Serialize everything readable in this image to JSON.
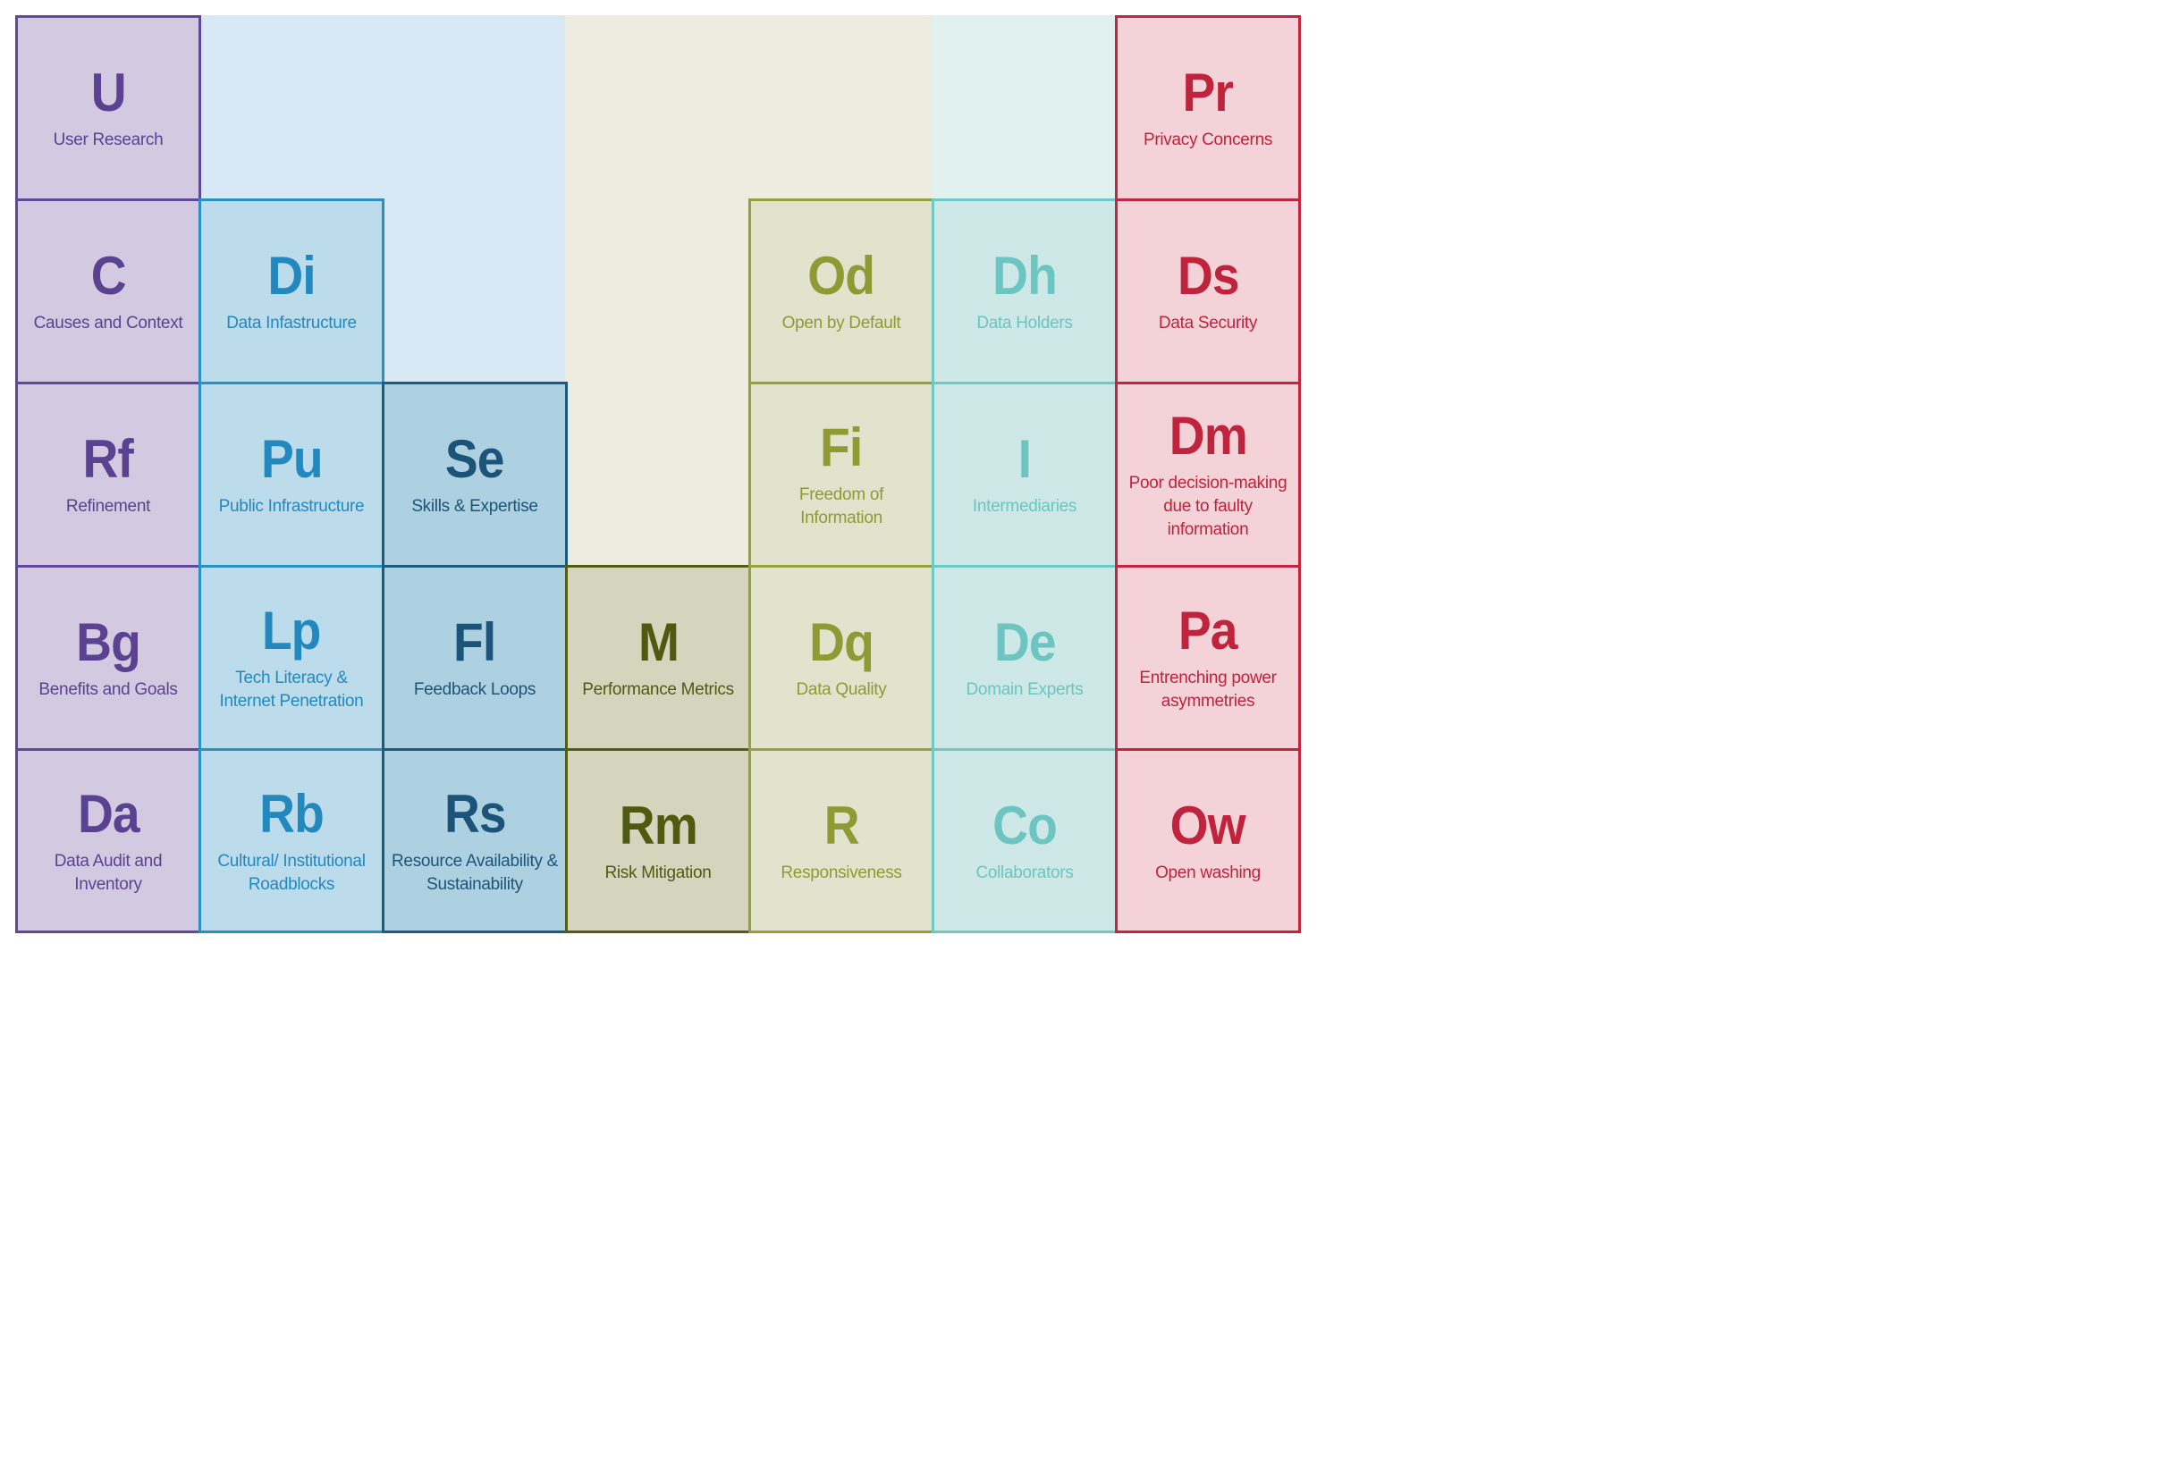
{
  "groups": [
    {
      "band_color": "#d3c9e1",
      "fill": "#d3c9e1",
      "border": "#60489a",
      "text": "#5a4291"
    },
    {
      "band_color": "#d8e8f4",
      "fill": "#bcdcec",
      "border": "#2a8fc2",
      "text": "#2388bd"
    },
    {
      "band_color": "#d8e8f4",
      "fill": "#aed1e1",
      "border": "#1c5a80",
      "text": "#1b5478"
    },
    {
      "band_color": "#ecede0",
      "fill": "#d5d5be",
      "border": "#535d13",
      "text": "#4f5a10"
    },
    {
      "band_color": "#ecede0",
      "fill": "#e2e3cc",
      "border": "#95a03a",
      "text": "#8e9a33"
    },
    {
      "band_color": "#e1f1ef",
      "fill": "#cde8e6",
      "border": "#6ec8c3",
      "text": "#6cc5c1"
    },
    {
      "band_color": "#f3d2d8",
      "fill": "#f3d2d8",
      "border": "#c2263f",
      "text": "#c0233c"
    }
  ],
  "elements": [
    {
      "symbol": "U",
      "label": "User Research"
    },
    {
      "symbol": "C",
      "label": "Causes and Context"
    },
    {
      "symbol": "Rf",
      "label": "Refinement"
    },
    {
      "symbol": "Bg",
      "label": "Benefits and Goals"
    },
    {
      "symbol": "Da",
      "label": "Data Audit and Inventory"
    },
    {
      "symbol": "Di",
      "label": "Data Infastructure"
    },
    {
      "symbol": "Pu",
      "label": "Public Infrastructure"
    },
    {
      "symbol": "Lp",
      "label": "Tech Literacy & Internet Penetration"
    },
    {
      "symbol": "Rb",
      "label": "Cultural/ Institutional Roadblocks"
    },
    {
      "symbol": "Se",
      "label": "Skills & Expertise"
    },
    {
      "symbol": "Fl",
      "label": "Feedback Loops"
    },
    {
      "symbol": "Rs",
      "label": "Resource Availability & Sustainability"
    },
    {
      "symbol": "M",
      "label": "Performance Metrics"
    },
    {
      "symbol": "Rm",
      "label": "Risk Mitigation"
    },
    {
      "symbol": "Od",
      "label": "Open by Default"
    },
    {
      "symbol": "Fi",
      "label": "Freedom of Information"
    },
    {
      "symbol": "Dq",
      "label": "Data Quality"
    },
    {
      "symbol": "R",
      "label": "Responsiveness"
    },
    {
      "symbol": "Dh",
      "label": "Data Holders"
    },
    {
      "symbol": "I",
      "label": "Intermediaries"
    },
    {
      "symbol": "De",
      "label": "Domain Experts"
    },
    {
      "symbol": "Co",
      "label": "Collaborators"
    },
    {
      "symbol": "Pr",
      "label": "Privacy Concerns"
    },
    {
      "symbol": "Ds",
      "label": "Data Security"
    },
    {
      "symbol": "Dm",
      "label": "Poor decision-making due to faulty information"
    },
    {
      "symbol": "Pa",
      "label": "Entrenching power asymmetries"
    },
    {
      "symbol": "Ow",
      "label": "Open washing"
    }
  ]
}
